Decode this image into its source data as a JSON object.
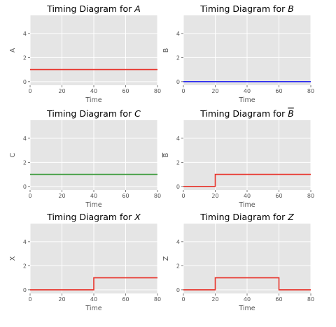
{
  "figure": {
    "background": "#ffffff",
    "axes_face": "#e5e5e5",
    "grid_color": "#ffffff"
  },
  "chart_data": [
    {
      "type": "line",
      "step": true,
      "title_prefix": "Timing Diagram for ",
      "title_var": "A",
      "title_overline": false,
      "xlabel": "Time",
      "ylabel": "A",
      "ylabel_overline": false,
      "xlim": [
        0,
        80
      ],
      "ylim": [
        -0.3,
        5.5
      ],
      "xticks": [
        0,
        20,
        40,
        60,
        80
      ],
      "yticks": [
        0,
        2,
        4
      ],
      "grid": true,
      "color": "#e8342c",
      "x": [
        0,
        80
      ],
      "y": [
        1,
        1
      ]
    },
    {
      "type": "line",
      "step": true,
      "title_prefix": "Timing Diagram for ",
      "title_var": "B",
      "title_overline": false,
      "xlabel": "Time",
      "ylabel": "B",
      "ylabel_overline": false,
      "xlim": [
        0,
        80
      ],
      "ylim": [
        -0.3,
        5.5
      ],
      "xticks": [
        0,
        20,
        40,
        60,
        80
      ],
      "yticks": [
        0,
        2,
        4
      ],
      "grid": true,
      "color": "#2c2cf0",
      "x": [
        0,
        80
      ],
      "y": [
        0,
        0
      ]
    },
    {
      "type": "line",
      "step": true,
      "title_prefix": "Timing Diagram for ",
      "title_var": "C",
      "title_overline": false,
      "xlabel": "Time",
      "ylabel": "C",
      "ylabel_overline": false,
      "xlim": [
        0,
        80
      ],
      "ylim": [
        -0.3,
        5.5
      ],
      "xticks": [
        0,
        20,
        40,
        60,
        80
      ],
      "yticks": [
        0,
        2,
        4
      ],
      "grid": true,
      "color": "#3a9a3a",
      "x": [
        0,
        80
      ],
      "y": [
        1,
        1
      ]
    },
    {
      "type": "line",
      "step": true,
      "title_prefix": "Timing Diagram for ",
      "title_var": "B",
      "title_overline": true,
      "xlabel": "Time",
      "ylabel": "B",
      "ylabel_overline": true,
      "xlim": [
        0,
        80
      ],
      "ylim": [
        -0.3,
        5.5
      ],
      "xticks": [
        0,
        20,
        40,
        60,
        80
      ],
      "yticks": [
        0,
        2,
        4
      ],
      "grid": true,
      "color": "#e8342c",
      "x": [
        0,
        20,
        20,
        80
      ],
      "y": [
        0,
        0,
        1,
        1
      ]
    },
    {
      "type": "line",
      "step": true,
      "title_prefix": "Timing Diagram for ",
      "title_var": "X",
      "title_overline": false,
      "xlabel": "Time",
      "ylabel": "X",
      "ylabel_overline": false,
      "xlim": [
        0,
        80
      ],
      "ylim": [
        -0.3,
        5.5
      ],
      "xticks": [
        0,
        20,
        40,
        60,
        80
      ],
      "yticks": [
        0,
        2,
        4
      ],
      "grid": true,
      "color": "#e8342c",
      "x": [
        0,
        40,
        40,
        80
      ],
      "y": [
        0,
        0,
        1,
        1
      ]
    },
    {
      "type": "line",
      "step": true,
      "title_prefix": "Timing Diagram for ",
      "title_var": "Z",
      "title_overline": false,
      "xlabel": "Time",
      "ylabel": "Z",
      "ylabel_overline": false,
      "xlim": [
        0,
        80
      ],
      "ylim": [
        -0.3,
        5.5
      ],
      "xticks": [
        0,
        20,
        40,
        60,
        80
      ],
      "yticks": [
        0,
        2,
        4
      ],
      "grid": true,
      "color": "#e8342c",
      "x": [
        0,
        20,
        20,
        60,
        60,
        80
      ],
      "y": [
        0,
        0,
        1,
        1,
        0,
        0
      ]
    }
  ]
}
